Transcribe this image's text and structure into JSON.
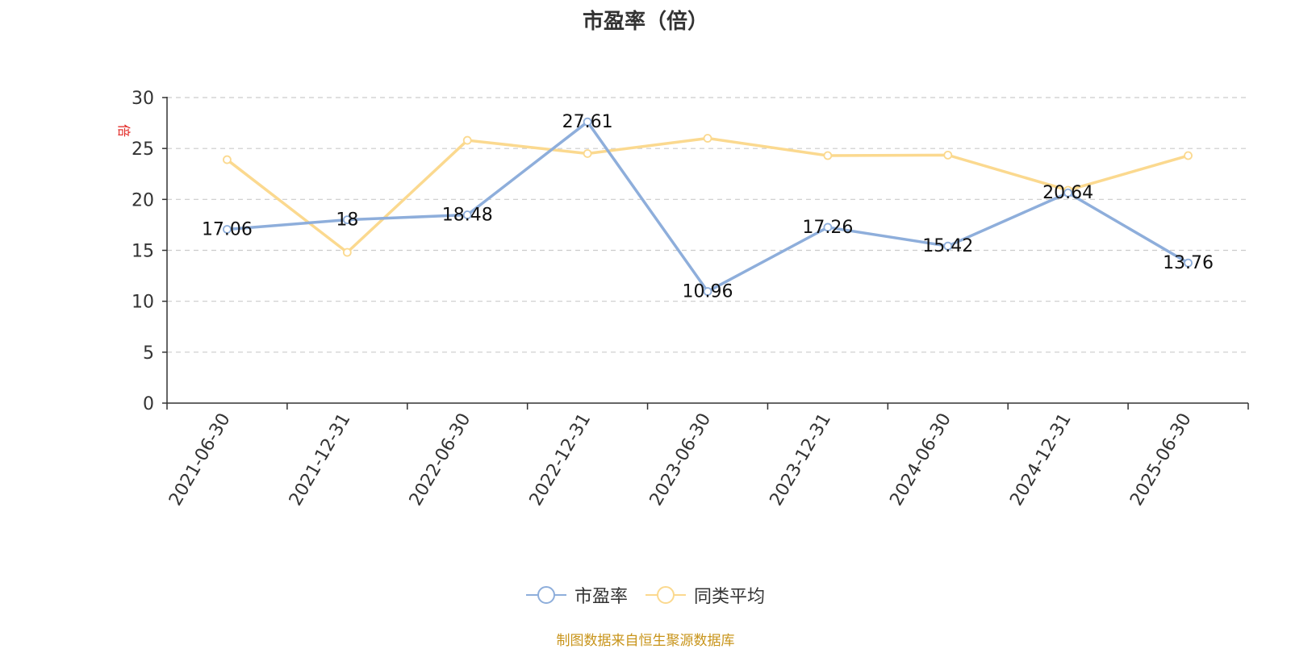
{
  "title": "市盈率（倍）",
  "source_text": "制图数据来自恒生聚源数据库",
  "colors": {
    "pe": "#8eaedb",
    "avg": "#fbd98f",
    "axis": "#333333",
    "grid": "#cccccc",
    "unit": "#e0211d",
    "source": "#c8941a"
  },
  "legend": [
    {
      "label": "市盈率",
      "color": "#8eaedb"
    },
    {
      "label": "同类平均",
      "color": "#fbd98f"
    }
  ],
  "chart_data": {
    "type": "line",
    "title": "市盈率（倍）",
    "xlabel": "",
    "ylabel": "倍",
    "categories": [
      "2021-06-30",
      "2021-12-31",
      "2022-06-30",
      "2022-12-31",
      "2023-06-30",
      "2023-12-31",
      "2024-06-30",
      "2024-12-31",
      "2025-06-30"
    ],
    "ylim": [
      0,
      30
    ],
    "yticks": [
      0,
      5,
      10,
      15,
      20,
      25,
      30
    ],
    "grid": true,
    "legend_position": "bottom",
    "series": [
      {
        "name": "市盈率",
        "values": [
          17.06,
          18,
          18.48,
          27.61,
          10.96,
          17.26,
          15.42,
          20.64,
          13.76
        ],
        "show_labels": true
      },
      {
        "name": "同类平均",
        "values": [
          23.9,
          14.8,
          25.8,
          24.5,
          26.0,
          24.3,
          24.35,
          20.9,
          24.3
        ],
        "show_labels": false
      }
    ]
  }
}
